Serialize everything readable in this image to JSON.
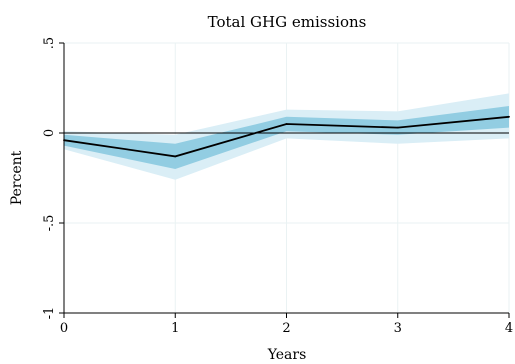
{
  "chart_data": {
    "type": "line",
    "title": "Total GHG emissions",
    "xlabel": "Years",
    "ylabel": "Percent",
    "x": [
      0,
      1,
      2,
      3,
      4
    ],
    "xticks": [
      "0",
      "1",
      "2",
      "3",
      "4"
    ],
    "yticks": [
      {
        "value": 0.5,
        "label": ".5"
      },
      {
        "value": 0,
        "label": "0"
      },
      {
        "value": -0.5,
        "label": "-.5"
      },
      {
        "value": -1,
        "label": "-1"
      }
    ],
    "xlim": [
      0,
      4
    ],
    "ylim": [
      -1,
      0.5
    ],
    "grid": true,
    "reference_line": 0,
    "series": [
      {
        "values": [
          -0.04,
          -0.13,
          0.05,
          0.03,
          0.09
        ],
        "color": "#000000"
      }
    ],
    "bands": [
      {
        "lower": [
          -0.09,
          -0.26,
          -0.03,
          -0.06,
          -0.03
        ],
        "upper": [
          0.01,
          -0.01,
          0.13,
          0.12,
          0.22
        ],
        "color": "#daeef6"
      },
      {
        "lower": [
          -0.07,
          -0.2,
          0.01,
          -0.01,
          0.03
        ],
        "upper": [
          -0.01,
          -0.06,
          0.09,
          0.07,
          0.15
        ],
        "color": "#92cde2"
      }
    ]
  }
}
